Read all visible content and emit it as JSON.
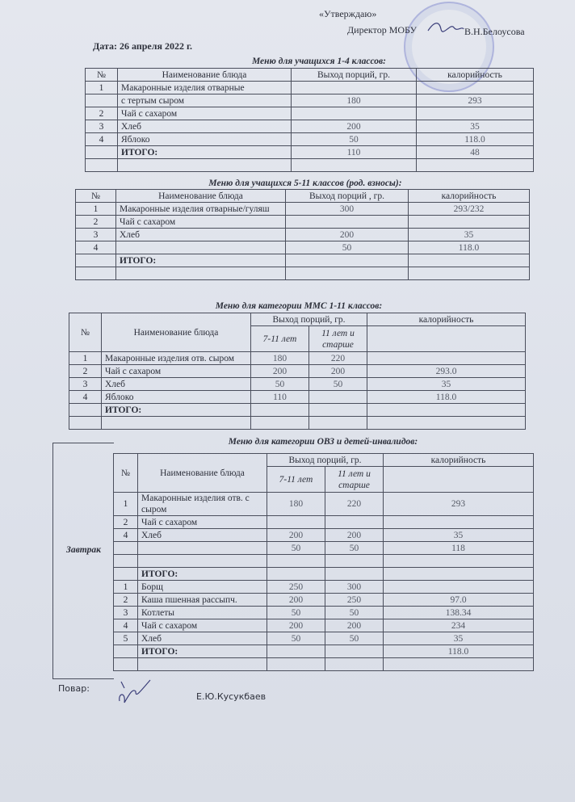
{
  "header": {
    "approve": "«Утверждаю»",
    "director": "Директор МОБУ",
    "director_name": "В.Н.Белоусова",
    "date": "Дата: 26  апреля 2022 г."
  },
  "tables": [
    {
      "title": "Меню для учащихся 1-4 классов:",
      "headers": [
        "№",
        "Наименование блюда",
        "Выход порций, гр.",
        "калорийность"
      ],
      "rows": [
        [
          "1",
          "Макаронные изделия отварные",
          "",
          ""
        ],
        [
          "",
          "с тертым сыром",
          "180",
          "293"
        ],
        [
          "2",
          "Чай с сахаром",
          "",
          ""
        ],
        [
          "3",
          "Хлеб",
          "200",
          "35"
        ],
        [
          "4",
          "Яблоко",
          "50",
          "118.0"
        ],
        [
          "",
          "ИТОГО:",
          "110",
          "48"
        ],
        [
          "",
          "",
          "",
          ""
        ]
      ]
    },
    {
      "title": "Меню для учащихся 5-11 классов (род. взносы):",
      "headers": [
        "№",
        "Наименование блюда",
        "Выход порций , гр.",
        "калорийность"
      ],
      "rows": [
        [
          "1",
          "Макаронные изделия отварные/гуляш",
          "300",
          "293/232"
        ],
        [
          "2",
          "Чай с сахаром",
          "",
          ""
        ],
        [
          "3",
          "Хлеб",
          "200",
          "35"
        ],
        [
          "4",
          "",
          "50",
          "118.0"
        ],
        [
          "",
          "ИТОГО:",
          "",
          ""
        ],
        [
          "",
          "",
          "",
          ""
        ]
      ]
    },
    {
      "title": "Меню для категории ММС 1-11 классов:",
      "headers": [
        "№",
        "Наименование блюда",
        "Выход порций, гр.",
        "калорийность"
      ],
      "subheaders": [
        "7-11 лет",
        "11 лет и старше"
      ],
      "rows": [
        [
          "1",
          "Макаронные изделия отв. сыром",
          "180",
          "220",
          ""
        ],
        [
          "2",
          "Чай с сахаром",
          "200",
          "200",
          "293.0"
        ],
        [
          "3",
          "Хлеб",
          "50",
          "50",
          "35"
        ],
        [
          "4",
          "Яблоко",
          "110",
          "",
          "118.0"
        ],
        [
          "",
          "ИТОГО:",
          "",
          "",
          ""
        ],
        [
          "",
          "",
          "",
          "",
          ""
        ]
      ]
    },
    {
      "title": "Меню для категории ОВЗ и детей-инвалидов:",
      "side_label": "Завтрак",
      "headers": [
        "№",
        "Наименование блюда",
        "Выход порций, гр.",
        "калорийность"
      ],
      "subheaders": [
        "7-11 лет",
        "11 лет и старше"
      ],
      "rows": [
        [
          "1",
          "Макаронные изделия отв. с сыром",
          "180",
          "220",
          "293"
        ],
        [
          "2",
          "Чай с сахаром",
          "",
          "",
          ""
        ],
        [
          "4",
          "Хлеб",
          "200",
          "200",
          "35"
        ],
        [
          "",
          "",
          "50",
          "50",
          "118"
        ],
        [
          "",
          "",
          "",
          "",
          ""
        ],
        [
          "",
          "ИТОГО:",
          "",
          "",
          ""
        ],
        [
          "1",
          "Борщ",
          "250",
          "300",
          ""
        ],
        [
          "2",
          "Каша пшенная рассыпч.",
          "200",
          "250",
          "97.0"
        ],
        [
          "3",
          "Котлеты",
          "50",
          "50",
          "138.34"
        ],
        [
          "4",
          "Чай с сахаром",
          "200",
          "200",
          "234"
        ],
        [
          "5",
          "Хлеб",
          "50",
          "50",
          "35"
        ],
        [
          "",
          "ИТОГО:",
          "",
          "",
          "118.0"
        ],
        [
          "",
          "",
          "",
          "",
          ""
        ]
      ]
    }
  ],
  "footer": {
    "cook_label": "Повар:",
    "cook_name": "Е.Ю.Кусукбаев"
  }
}
